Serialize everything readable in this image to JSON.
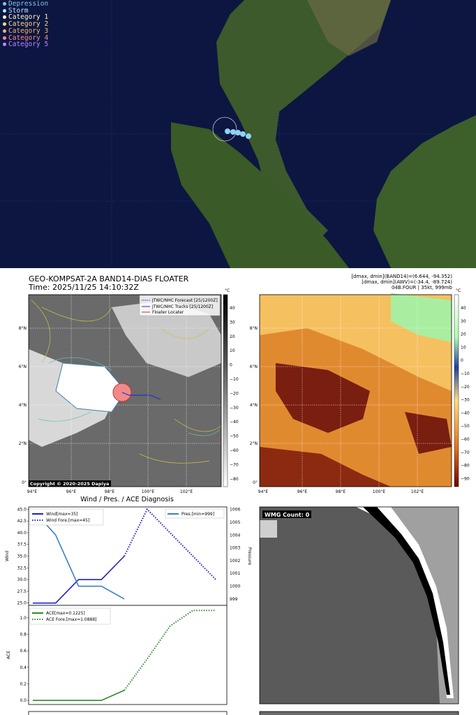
{
  "map_legend": [
    {
      "label": "Depression",
      "color": "#7ec8e3"
    },
    {
      "label": "Storm",
      "color": "#aee7ff"
    },
    {
      "label": "Category 1",
      "color": "#fff6c8"
    },
    {
      "label": "Category 2",
      "color": "#ffd98a"
    },
    {
      "label": "Category 3",
      "color": "#ffb16a"
    },
    {
      "label": "Category 4",
      "color": "#ff8a8a"
    },
    {
      "label": "Category 5",
      "color": "#b28cff"
    }
  ],
  "header": {
    "title": "GEO-KOMPSAT-2A BAND14-DIAS FLOATER",
    "time": "Time: 2025/11/25 14:10:32Z",
    "diag1": "[dmax, dmin](BAND14)=(6.644, -94.352)",
    "diag2": "[dmax, dmin](AWV)=(-34.4, -89.724)",
    "diag3": "04B.FOUR | 35kt, 999mb"
  },
  "ir_panel": {
    "legend": [
      "JTWC/NHC Forecast [25/1200Z]",
      "JTWC/NHC Tracks [25/1200Z]",
      "Floater Locater"
    ],
    "copyright": "Copyright © 2020-2025 Dapiya",
    "unit": "°C"
  },
  "colorbar_left": {
    "ticks": [
      "40",
      "30",
      "20",
      "10",
      "0",
      "−10",
      "−20",
      "−30",
      "−40",
      "−50",
      "−60",
      "−70",
      "−80"
    ]
  },
  "colorbar_right": {
    "ticks": [
      "40",
      "30",
      "20",
      "10",
      "0",
      "−10",
      "−20",
      "−30",
      "−40",
      "−50",
      "−60",
      "−70",
      "−80",
      "−90"
    ]
  },
  "lon_ticks": [
    "94°E",
    "96°E",
    "98°E",
    "100°E",
    "102°E"
  ],
  "lat_ticks": [
    "8°N",
    "6°N",
    "4°N",
    "2°N",
    "0°"
  ],
  "wind_title": "Wind / Pres. / ACE Diagnosis",
  "wmg_label": "WMG Count: 0",
  "chart_data": [
    {
      "type": "line",
      "title": "Wind / Pres. / ACE Diagnosis",
      "ylabel": "Wind",
      "y2label": "Pressure",
      "ylim": [
        24.5,
        45.5
      ],
      "y2lim": [
        998.5,
        1006.2
      ],
      "yticks": [
        "25.0",
        "27.5",
        "30.0",
        "32.5",
        "35.0",
        "37.5",
        "40.0",
        "42.5",
        "45.0"
      ],
      "y2ticks": [
        "999",
        "1000",
        "1001",
        "1002",
        "1003",
        "1004",
        "1005",
        "1006"
      ],
      "series": [
        {
          "name": "Wind[max=35]",
          "color": "#1f1fcc",
          "style": "solid",
          "x": [
            0,
            1,
            2,
            3,
            4
          ],
          "values": [
            25,
            25,
            30,
            30,
            35
          ]
        },
        {
          "name": "Wind Fore.[max=45]",
          "color": "#1f1fcc",
          "style": "dotted",
          "x": [
            4,
            5,
            6,
            7,
            8
          ],
          "values": [
            35,
            45,
            40,
            35,
            30
          ]
        },
        {
          "name": "Pres.[min=999]",
          "color": "#3a7fc0",
          "style": "solid",
          "axis": "right",
          "x": [
            0,
            1,
            2,
            3,
            4
          ],
          "values": [
            1006,
            1004,
            1000,
            1000,
            999
          ]
        }
      ]
    },
    {
      "type": "line",
      "ylabel": "ACE",
      "ylim": [
        -0.05,
        1.15
      ],
      "yticks": [
        "0.0",
        "0.2",
        "0.4",
        "0.6",
        "0.8",
        "1.0"
      ],
      "series": [
        {
          "name": "ACE[max=0.1225]",
          "color": "#2a8a2a",
          "style": "solid",
          "x": [
            0,
            1,
            2,
            3,
            4
          ],
          "values": [
            0,
            0,
            0,
            0,
            0.1225
          ]
        },
        {
          "name": "ACE Fore.[max=1.0888]",
          "color": "#2a8a2a",
          "style": "dotted",
          "x": [
            4,
            5,
            6,
            7,
            8
          ],
          "values": [
            0.1225,
            0.5,
            0.9,
            1.0888,
            1.0888
          ]
        }
      ]
    }
  ]
}
